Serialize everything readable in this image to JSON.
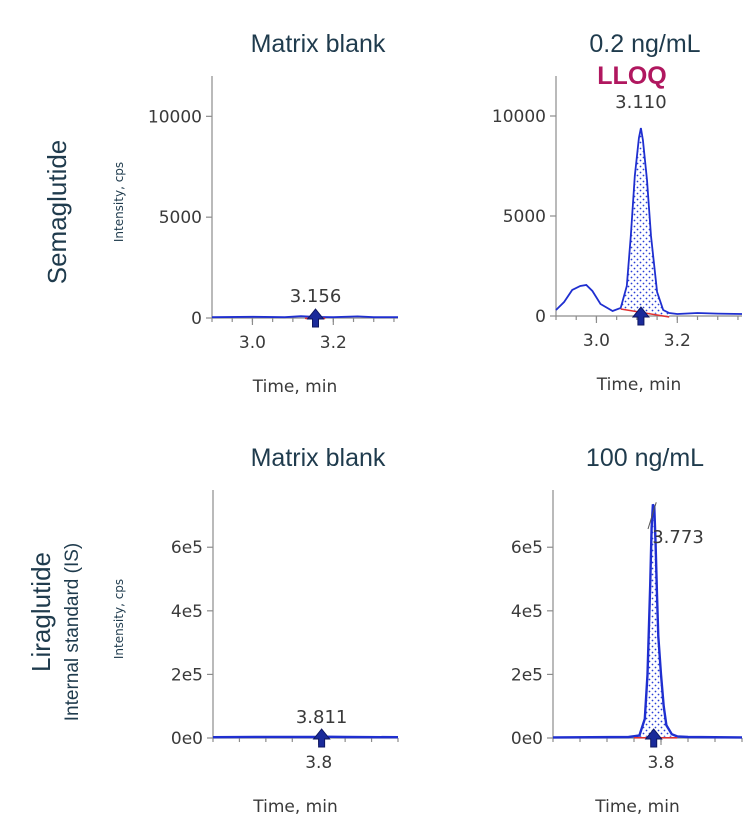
{
  "rows": [
    {
      "label": "Semaglutide",
      "sublabel": ""
    },
    {
      "label": "Liraglutide",
      "sublabel": "Internal standard (IS)"
    }
  ],
  "chart_data": [
    {
      "type": "line",
      "title": "Matrix blank",
      "annotation": "",
      "xlabel": "Time, min",
      "ylabel": "Intensity, cps",
      "xlim": [
        2.9,
        3.36
      ],
      "ylim": [
        0,
        12000
      ],
      "xticks": [
        3.0,
        3.2
      ],
      "xtick_labels": [
        "3.0",
        "3.2"
      ],
      "yticks": [
        0,
        5000,
        10000
      ],
      "ytick_labels": [
        "0",
        "5000",
        "10000"
      ],
      "peak_label": "3.156",
      "peak_rt": 3.156,
      "series": [
        {
          "x": [
            2.9,
            3.0,
            3.08,
            3.12,
            3.15,
            3.17,
            3.2,
            3.26,
            3.3,
            3.36
          ],
          "y": [
            40,
            60,
            40,
            90,
            60,
            50,
            40,
            80,
            40,
            40
          ]
        }
      ],
      "baseline": [
        [
          3.13,
          30
        ],
        [
          3.18,
          30
        ]
      ],
      "fill_range": []
    },
    {
      "type": "line",
      "title": "0.2 ng/mL",
      "annotation": "LLOQ",
      "xlabel": "Time, min",
      "ylabel": "",
      "xlim": [
        2.9,
        3.36
      ],
      "ylim": [
        0,
        12000
      ],
      "xticks": [
        3.0,
        3.2
      ],
      "xtick_labels": [
        "3.0",
        "3.2"
      ],
      "yticks": [
        0,
        5000,
        10000
      ],
      "ytick_labels": [
        "0",
        "5000",
        "10000"
      ],
      "peak_label": "3.110",
      "peak_rt": 3.11,
      "series": [
        {
          "x": [
            2.9,
            2.92,
            2.94,
            2.96,
            2.975,
            2.99,
            3.01,
            3.04,
            3.06,
            3.075,
            3.085,
            3.095,
            3.105,
            3.11,
            3.115,
            3.125,
            3.135,
            3.15,
            3.165,
            3.18,
            3.2,
            3.25,
            3.3,
            3.36
          ],
          "y": [
            300,
            700,
            1300,
            1500,
            1550,
            1250,
            600,
            250,
            400,
            1500,
            4000,
            7000,
            8900,
            9400,
            8800,
            6800,
            4000,
            1200,
            300,
            150,
            100,
            150,
            120,
            100
          ]
        }
      ],
      "baseline": [
        [
          3.06,
          400
        ],
        [
          3.18,
          0
        ]
      ],
      "fill_range": [
        3.06,
        3.18
      ]
    },
    {
      "type": "line",
      "title": "Matrix blank",
      "annotation": "",
      "xlabel": "Time, min",
      "ylabel": "Intensity, cps",
      "xlim": [
        3.4,
        4.1
      ],
      "ylim": [
        0,
        780000
      ],
      "xticks": [
        3.8
      ],
      "xtick_labels": [
        "3.8"
      ],
      "yticks": [
        0,
        200000,
        400000,
        600000
      ],
      "ytick_labels": [
        "0e0",
        "2e5",
        "4e5",
        "6e5"
      ],
      "peak_label": "3.811",
      "peak_rt": 3.811,
      "series": [
        {
          "x": [
            3.4,
            3.6,
            3.8,
            3.811,
            3.9,
            4.1
          ],
          "y": [
            2500,
            3500,
            3000,
            4000,
            3000,
            2500
          ]
        }
      ],
      "baseline": [],
      "fill_range": []
    },
    {
      "type": "line",
      "title": "100 ng/mL",
      "annotation": "",
      "xlabel": "Time, min",
      "ylabel": "",
      "xlim": [
        3.4,
        4.1
      ],
      "ylim": [
        0,
        780000
      ],
      "xticks": [
        3.8
      ],
      "xtick_labels": [
        "3.8"
      ],
      "yticks": [
        0,
        200000,
        400000,
        600000
      ],
      "ytick_labels": [
        "0e0",
        "2e5",
        "4e5",
        "6e5"
      ],
      "peak_label": "3.773",
      "peak_rt": 3.773,
      "series": [
        {
          "x": [
            3.4,
            3.68,
            3.72,
            3.74,
            3.75,
            3.76,
            3.765,
            3.77,
            3.775,
            3.78,
            3.785,
            3.79,
            3.8,
            3.81,
            3.82,
            3.84,
            3.86,
            3.9,
            4.1
          ],
          "y": [
            2000,
            3000,
            8000,
            60000,
            200000,
            480000,
            660000,
            735000,
            725000,
            610000,
            450000,
            320000,
            200000,
            100000,
            40000,
            12000,
            5000,
            3000,
            2000
          ]
        }
      ],
      "baseline": [
        [
          3.7,
          4000
        ],
        [
          3.86,
          4000
        ]
      ],
      "fill_range": [
        3.7,
        3.86
      ]
    }
  ]
}
